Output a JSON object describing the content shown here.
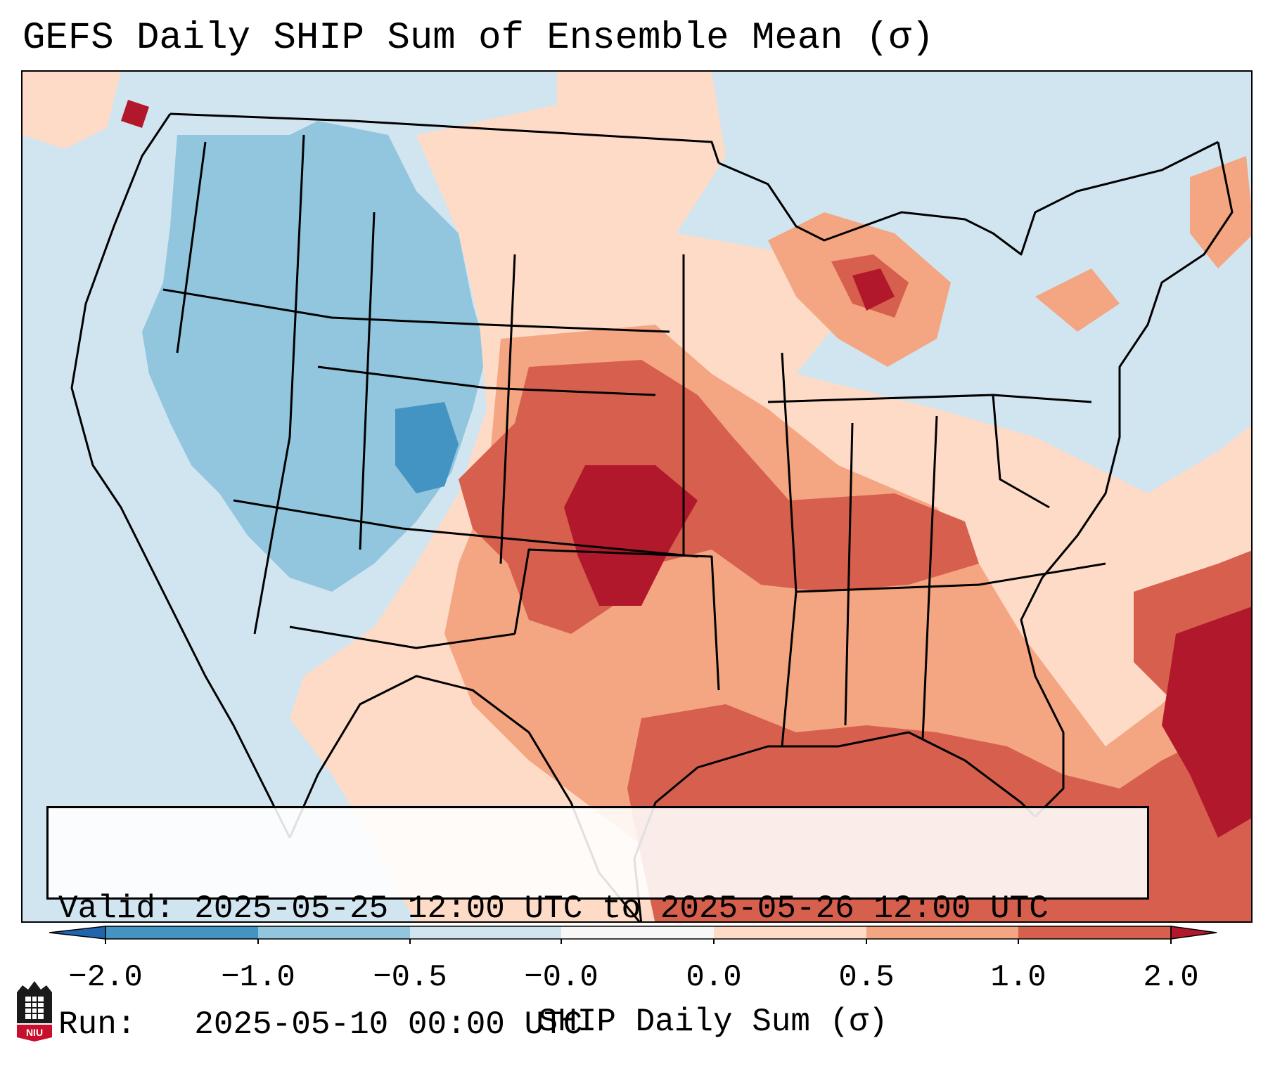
{
  "title": "GEFS Daily SHIP Sum of Ensemble Mean (σ)",
  "info": {
    "valid_line": "Valid: 2025-05-25 12:00 UTC to 2025-05-26 12:00 UTC",
    "run_line": "Run:   2025-05-10 00:00 UTC"
  },
  "colorbar": {
    "label": "SHIP Daily Sum (σ)",
    "ticks": [
      "−2.0",
      "−1.0",
      "−0.5",
      "−0.0",
      "0.0",
      "0.5",
      "1.0",
      "2.0"
    ],
    "bins": [
      {
        "range": "< -2.0",
        "color": "#2166ac"
      },
      {
        "range": "-2.0 to -1.0",
        "color": "#4393c3"
      },
      {
        "range": "-1.0 to -0.5",
        "color": "#92c5de"
      },
      {
        "range": "-0.5 to 0.0",
        "color": "#d1e5f0"
      },
      {
        "range": "0.0",
        "color": "#f7f7f7"
      },
      {
        "range": "0.0 to 0.5",
        "color": "#fddbc7"
      },
      {
        "range": "0.5 to 1.0",
        "color": "#f4a582"
      },
      {
        "range": "1.0 to 2.0",
        "color": "#d6604d"
      },
      {
        "range": "> 2.0",
        "color": "#b2182b"
      }
    ]
  },
  "map_regions": [
    {
      "region": "Pacific Northwest, Great Basin, Rockies, Southwest",
      "category": "-1.0 to -0.5"
    },
    {
      "region": "Colorado",
      "category": "-2.0 to -1.0"
    },
    {
      "region": "Kansas, Oklahoma, Nebraska",
      "category": "1.0 to 2.0"
    },
    {
      "region": "Central Oklahoma / Southern Kansas",
      "category": "> 2.0"
    },
    {
      "region": "Tennessee, Missouri, Arkansas",
      "category": "1.0 to 2.0"
    },
    {
      "region": "Northern Michigan",
      "category": "> 2.0"
    },
    {
      "region": "Gulf of Mexico",
      "category": "1.0 to 2.0"
    },
    {
      "region": "Western Atlantic near Bahamas",
      "category": "> 2.0"
    },
    {
      "region": "Texas, Southeast US",
      "category": "0.0 to 1.0"
    },
    {
      "region": "Northeast US",
      "category": "-0.5 to 0.0"
    }
  ],
  "logo": {
    "text": "NIU"
  }
}
